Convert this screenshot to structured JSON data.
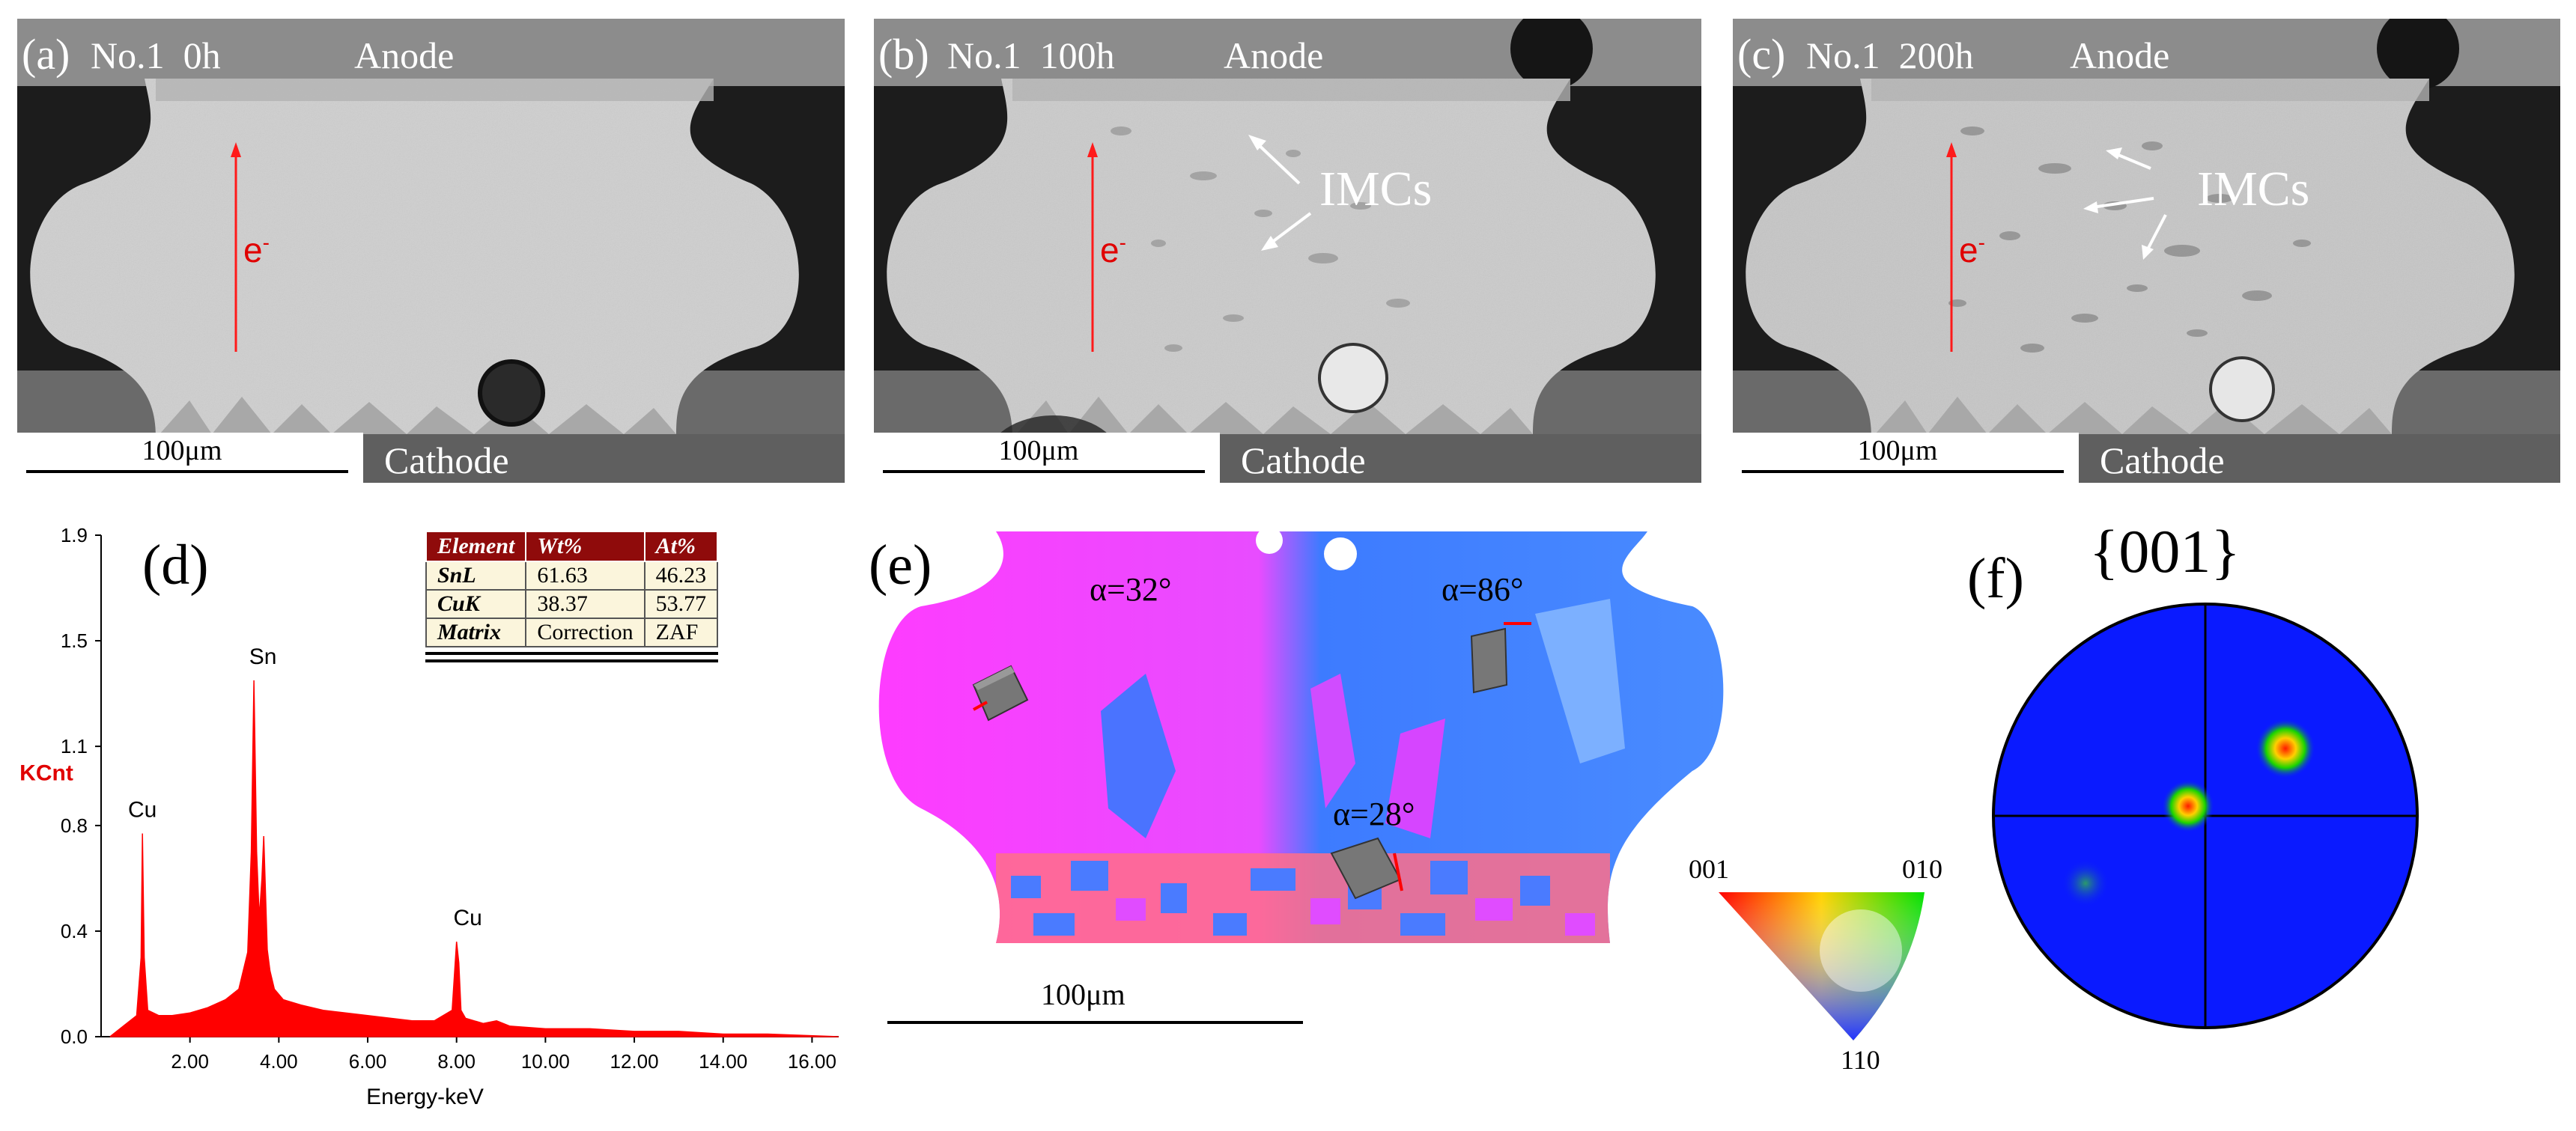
{
  "panels": [
    {
      "label": "(a)",
      "title": "No.1  0h",
      "anode": "Anode",
      "cathode": "Cathode",
      "scale": "100μm",
      "imcs": ""
    },
    {
      "label": "(b)",
      "title": "No.1  100h",
      "anode": "Anode",
      "cathode": "Cathode",
      "scale": "100μm",
      "imcs": "IMCs"
    },
    {
      "label": "(c)",
      "title": "No.1  200h",
      "anode": "Anode",
      "cathode": "Cathode",
      "scale": "100μm",
      "imcs": "IMCs"
    }
  ],
  "electron_label": "e",
  "electron_superscript": "-",
  "panel_d": {
    "label": "(d)",
    "table": {
      "headers": [
        "Element",
        "Wt%",
        "At%"
      ],
      "rows": [
        [
          "SnL",
          "61.63",
          "46.23"
        ],
        [
          "CuK",
          "38.37",
          "53.77"
        ],
        [
          "Matrix",
          "Correction",
          "ZAF"
        ]
      ]
    }
  },
  "chart_data": {
    "type": "line",
    "title": "",
    "xlabel": "Energy-keV",
    "ylabel": "KCnt",
    "xlim": [
      0,
      16.6
    ],
    "ylim": [
      0,
      1.9
    ],
    "x_ticks": [
      "2.00",
      "4.00",
      "6.00",
      "8.00",
      "10.00",
      "12.00",
      "14.00",
      "16.00"
    ],
    "y_ticks": [
      "0.0",
      "0.4",
      "0.8",
      "1.1",
      "1.5",
      "1.9"
    ],
    "peaks": [
      {
        "label": "Cu",
        "energy_keV": 0.93,
        "kcnt": 0.77
      },
      {
        "label": "Sn",
        "energy_keV": 3.44,
        "kcnt": 1.35
      },
      {
        "label": "Cu",
        "energy_keV": 8.05,
        "kcnt": 0.36
      }
    ],
    "series": [
      {
        "color": "#ff0000",
        "x": [
          0.2,
          0.5,
          0.8,
          0.9,
          0.93,
          0.97,
          1.05,
          1.3,
          1.6,
          2.0,
          2.4,
          2.8,
          3.1,
          3.3,
          3.38,
          3.44,
          3.5,
          3.56,
          3.62,
          3.66,
          3.7,
          3.74,
          3.8,
          3.9,
          4.1,
          4.5,
          5.0,
          5.5,
          6.0,
          6.5,
          7.0,
          7.5,
          7.9,
          8.0,
          8.05,
          8.1,
          8.2,
          8.6,
          8.9,
          9.2,
          10,
          11,
          12,
          13,
          14,
          15,
          16.6
        ],
        "y": [
          0.0,
          0.04,
          0.08,
          0.3,
          0.77,
          0.3,
          0.1,
          0.08,
          0.08,
          0.09,
          0.11,
          0.14,
          0.18,
          0.32,
          0.7,
          1.35,
          0.7,
          0.45,
          0.6,
          0.76,
          0.55,
          0.33,
          0.25,
          0.18,
          0.14,
          0.12,
          0.1,
          0.09,
          0.08,
          0.07,
          0.06,
          0.06,
          0.1,
          0.36,
          0.28,
          0.1,
          0.07,
          0.05,
          0.06,
          0.04,
          0.03,
          0.03,
          0.02,
          0.02,
          0.01,
          0.01,
          0.0
        ]
      }
    ]
  },
  "panel_e": {
    "label": "(e)",
    "angles": [
      "α=32°",
      "α=86°",
      "α=28°"
    ],
    "scale": "100μm",
    "triangle_labels": {
      "top_left": "001",
      "top_right": "010",
      "bottom": "110"
    }
  },
  "panel_f": {
    "label": "(f)",
    "title": "{001}"
  },
  "colors": {
    "accent_red": "#e00000",
    "table_header": "#8f0b0b",
    "pole_blue": "#0a1aff"
  }
}
